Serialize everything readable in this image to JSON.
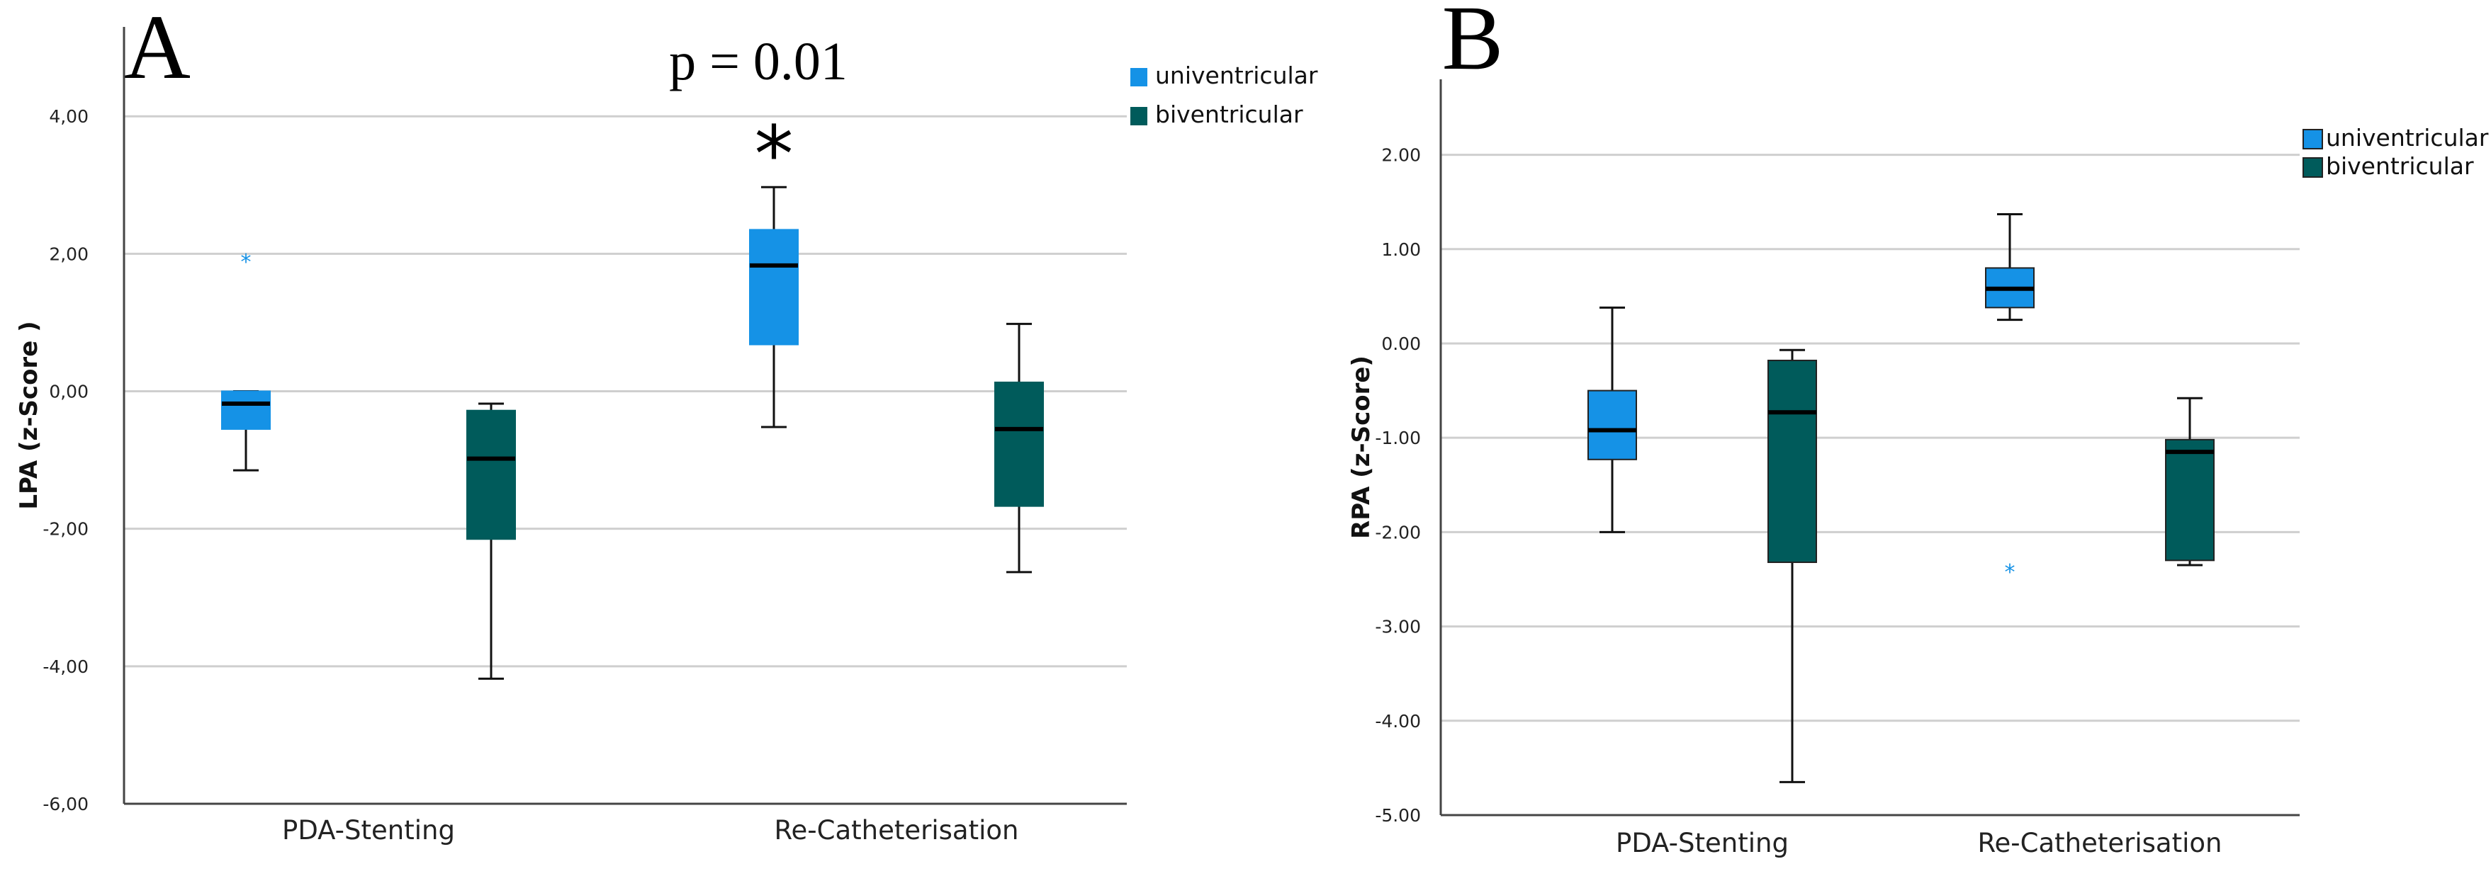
{
  "colors": {
    "univentricular": "#1592e6",
    "biventricular": "#005b5b",
    "median": "#000000",
    "grid": "#cfcfcf"
  },
  "chart_data": [
    {
      "type": "box",
      "panel": "A",
      "annotation": "p = 0.01",
      "significance_marker": "*",
      "significance_group": "Re-Catheterisation / univentricular",
      "ylabel": "LPA (z-Score )",
      "xlabel": "",
      "ylim": [
        -6,
        5.3
      ],
      "yticks": [
        4,
        2,
        0,
        -2,
        -4,
        -6
      ],
      "ytick_labels": [
        "4,00",
        "2,00",
        "0,00",
        "-2,00",
        "-4,00",
        "-6,00"
      ],
      "grid": true,
      "legend_position": "top-right",
      "categories": [
        "PDA-Stenting",
        "Re-Catheterisation"
      ],
      "series": [
        {
          "name": "univentricular",
          "boxes": [
            {
              "min": -1.15,
              "q1": -0.55,
              "median": -0.18,
              "q3": 0.0,
              "max": 0.0,
              "outliers": [
                1.9
              ]
            },
            {
              "min": -0.52,
              "q1": 0.68,
              "median": 1.83,
              "q3": 2.35,
              "max": 2.97,
              "outliers": []
            }
          ]
        },
        {
          "name": "biventricular",
          "boxes": [
            {
              "min": -4.18,
              "q1": -2.15,
              "median": -0.98,
              "q3": -0.28,
              "max": -0.18,
              "outliers": []
            },
            {
              "min": -2.63,
              "q1": -1.67,
              "median": -0.55,
              "q3": 0.13,
              "max": 0.98,
              "outliers": []
            }
          ]
        }
      ]
    },
    {
      "type": "box",
      "panel": "B",
      "ylabel": "RPA (z-Score)",
      "xlabel": "",
      "ylim": [
        -5,
        2.8
      ],
      "yticks": [
        2,
        1,
        0,
        -1,
        -2,
        -3,
        -4,
        -5
      ],
      "ytick_labels": [
        "2.00",
        "1.00",
        "0.00",
        "-1.00",
        "-2.00",
        "-3.00",
        "-4.00",
        "-5.00"
      ],
      "grid": true,
      "legend_position": "top-right",
      "categories": [
        "PDA-Stenting",
        "Re-Catheterisation"
      ],
      "series": [
        {
          "name": "univentricular",
          "boxes": [
            {
              "min": -2.0,
              "q1": -1.23,
              "median": -0.92,
              "q3": -0.5,
              "max": 0.38,
              "outliers": []
            },
            {
              "min": 0.25,
              "q1": 0.38,
              "median": 0.58,
              "q3": 0.8,
              "max": 1.37,
              "outliers": [
                -2.41
              ]
            }
          ]
        },
        {
          "name": "biventricular",
          "boxes": [
            {
              "min": -4.65,
              "q1": -2.32,
              "median": -0.73,
              "q3": -0.18,
              "max": -0.07,
              "outliers": []
            },
            {
              "min": -2.35,
              "q1": -2.3,
              "median": -1.15,
              "q3": -1.02,
              "max": -0.58,
              "outliers": []
            }
          ]
        }
      ]
    }
  ]
}
